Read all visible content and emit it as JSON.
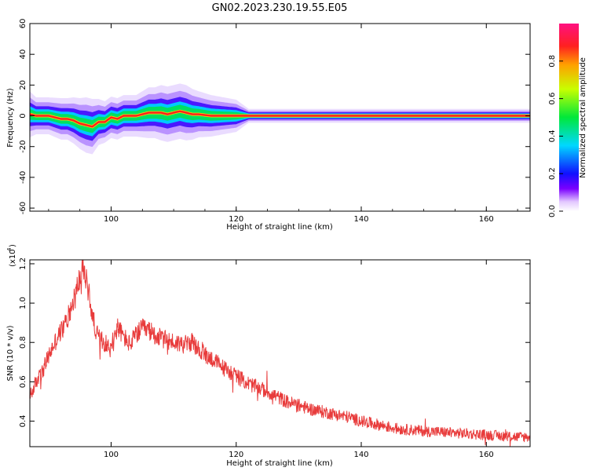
{
  "page_title": "GN02.2023.230.19.55.E05",
  "chart_data": [
    {
      "type": "heatmap",
      "title": "GN02.2023.230.19.55.E05",
      "xlabel": "Height of straight line (km)",
      "ylabel": "Frequency (Hz)",
      "xlim": [
        87,
        167
      ],
      "ylim": [
        -62,
        60
      ],
      "x_ticks": [
        100,
        120,
        140,
        160
      ],
      "y_ticks": [
        -60,
        -40,
        -20,
        0,
        20,
        40,
        60
      ],
      "colorbar": {
        "label": "Normalized spectral amplitude",
        "range": [
          0,
          1
        ],
        "ticks": [
          0.0,
          0.2,
          0.4,
          0.6,
          0.8
        ],
        "colormap": "rainbow (white→violet→blue→cyan→green→yellow→red→magenta)"
      },
      "ridge": {
        "description": "Peak spectral amplitude along frequency vs height",
        "x": [
          87,
          88,
          90,
          92,
          93,
          94,
          95,
          96,
          97,
          98,
          99,
          100,
          101,
          102,
          104,
          105,
          106,
          107,
          108,
          109,
          110,
          111,
          112,
          113,
          114,
          116,
          118,
          120,
          121,
          122,
          130,
          140,
          150,
          160,
          167
        ],
        "peak_freq_hz": [
          1,
          0,
          0,
          -2,
          -2,
          -3,
          -5,
          -6,
          -7,
          -4,
          -4,
          -1,
          -2,
          0,
          0,
          1,
          2,
          2,
          2,
          1,
          2,
          3,
          2,
          1,
          1,
          0,
          0,
          0,
          0,
          0,
          0,
          0,
          0,
          0,
          0
        ],
        "bandwidth_hz": [
          10,
          8,
          8,
          9,
          9,
          10,
          11,
          12,
          12,
          10,
          9,
          9,
          9,
          9,
          9,
          10,
          11,
          11,
          12,
          12,
          12,
          12,
          12,
          11,
          10,
          9,
          8,
          7,
          5,
          3,
          3,
          3,
          3,
          3,
          3
        ]
      },
      "grid": false
    },
    {
      "type": "line",
      "title": "",
      "xlabel": "Height of straight line (km)",
      "ylabel": "SNR (10 * v/v)",
      "y_multiplier": "(x10^4)",
      "y_multiplier_base": "(x10",
      "y_multiplier_exp": "4",
      "xlim": [
        87,
        167
      ],
      "ylim": [
        0.27,
        1.22
      ],
      "x_ticks": [
        100,
        120,
        140,
        160
      ],
      "y_ticks": [
        0.4,
        0.6,
        0.8,
        1.0,
        1.2
      ],
      "color": "#e83b3b",
      "grid": false,
      "series": [
        {
          "name": "",
          "x": [
            87,
            88,
            89,
            90,
            91,
            92,
            93,
            94,
            95,
            95.5,
            96,
            96.5,
            97,
            98,
            99,
            100,
            101,
            102,
            103,
            104,
            105,
            106,
            107,
            108,
            110,
            112,
            113,
            114,
            116,
            118,
            120,
            122,
            125,
            128,
            130,
            132,
            135,
            138,
            140,
            143,
            146,
            150,
            155,
            160,
            165,
            167
          ],
          "y": [
            0.52,
            0.6,
            0.65,
            0.73,
            0.8,
            0.86,
            0.92,
            1.02,
            1.13,
            1.17,
            1.12,
            1.04,
            0.93,
            0.82,
            0.8,
            0.76,
            0.88,
            0.83,
            0.79,
            0.84,
            0.87,
            0.86,
            0.84,
            0.82,
            0.8,
            0.79,
            0.8,
            0.76,
            0.72,
            0.67,
            0.63,
            0.59,
            0.55,
            0.5,
            0.48,
            0.46,
            0.44,
            0.42,
            0.4,
            0.38,
            0.36,
            0.35,
            0.34,
            0.33,
            0.32,
            0.32
          ]
        }
      ]
    }
  ]
}
